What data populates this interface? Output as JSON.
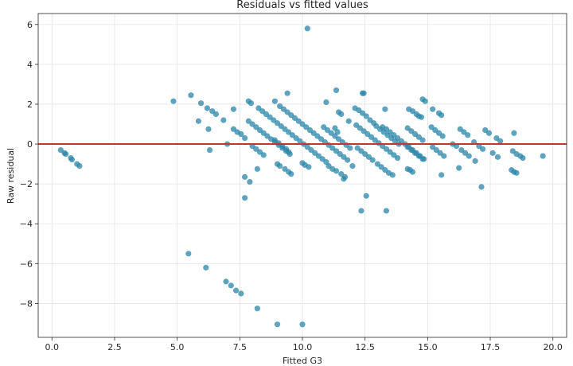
{
  "chart_data": {
    "type": "scatter",
    "title": "Residuals vs fitted values",
    "xlabel": "Fitted G3",
    "ylabel": "Raw residual",
    "xlim": [
      -0.55,
      20.55
    ],
    "ylim": [
      -9.7,
      6.55
    ],
    "xticks": [
      0.0,
      2.5,
      5.0,
      7.5,
      10.0,
      12.5,
      15.0,
      17.5,
      20.0
    ],
    "xtick_labels": [
      "0.0",
      "2.5",
      "5.0",
      "7.5",
      "10.0",
      "12.5",
      "15.0",
      "17.5",
      "20.0"
    ],
    "yticks": [
      -8,
      -6,
      -4,
      -2,
      0,
      2,
      4,
      6
    ],
    "ytick_labels": [
      "−8",
      "−6",
      "−4",
      "−2",
      "0",
      "2",
      "4",
      "6"
    ],
    "grid": true,
    "reference_line": {
      "y": 0,
      "color": "#c0392b"
    },
    "point_color": "#2a85a8",
    "points": [
      [
        0.35,
        -0.3
      ],
      [
        0.5,
        -0.45
      ],
      [
        0.55,
        -0.5
      ],
      [
        0.75,
        -0.7
      ],
      [
        0.8,
        -0.78
      ],
      [
        1.0,
        -1.0
      ],
      [
        1.1,
        -1.1
      ],
      [
        4.85,
        2.15
      ],
      [
        5.55,
        2.45
      ],
      [
        5.95,
        2.05
      ],
      [
        6.2,
        1.8
      ],
      [
        6.4,
        1.65
      ],
      [
        6.55,
        1.5
      ],
      [
        5.85,
        1.15
      ],
      [
        6.25,
        0.75
      ],
      [
        6.3,
        -0.3
      ],
      [
        6.85,
        1.2
      ],
      [
        7.0,
        0.0
      ],
      [
        7.25,
        1.75
      ],
      [
        5.45,
        -5.5
      ],
      [
        6.15,
        -6.2
      ],
      [
        6.95,
        -6.9
      ],
      [
        7.15,
        -7.1
      ],
      [
        7.35,
        -7.35
      ],
      [
        7.55,
        -7.5
      ],
      [
        8.2,
        -8.25
      ],
      [
        9.0,
        -9.05
      ],
      [
        10.0,
        -9.05
      ],
      [
        7.85,
        2.15
      ],
      [
        7.95,
        2.05
      ],
      [
        8.9,
        2.15
      ],
      [
        9.4,
        2.55
      ],
      [
        10.2,
        5.8
      ],
      [
        10.95,
        2.1
      ],
      [
        11.35,
        2.7
      ],
      [
        12.4,
        2.55
      ],
      [
        12.45,
        2.55
      ],
      [
        13.3,
        1.75
      ],
      [
        14.8,
        2.25
      ],
      [
        14.9,
        2.15
      ],
      [
        15.2,
        1.75
      ],
      [
        14.65,
        1.4
      ],
      [
        7.7,
        -1.65
      ],
      [
        7.7,
        -2.7
      ],
      [
        7.9,
        -1.9
      ],
      [
        8.2,
        -1.25
      ],
      [
        12.35,
        -3.35
      ],
      [
        12.55,
        -2.6
      ],
      [
        13.35,
        -3.35
      ],
      [
        12.0,
        -1.1
      ],
      [
        11.65,
        -1.75
      ],
      [
        14.2,
        -1.25
      ],
      [
        14.3,
        -1.3
      ],
      [
        15.55,
        -1.55
      ],
      [
        16.25,
        -1.2
      ],
      [
        17.15,
        -2.15
      ],
      [
        18.45,
        0.55
      ],
      [
        19.6,
        -0.6
      ],
      [
        7.25,
        0.75
      ],
      [
        7.4,
        0.6
      ],
      [
        7.55,
        0.5
      ],
      [
        7.7,
        0.3
      ],
      [
        7.85,
        1.15
      ],
      [
        8.0,
        1.0
      ],
      [
        8.15,
        0.85
      ],
      [
        8.3,
        0.7
      ],
      [
        8.45,
        0.55
      ],
      [
        8.6,
        0.4
      ],
      [
        8.75,
        0.25
      ],
      [
        8.9,
        0.1
      ],
      [
        9.05,
        -0.05
      ],
      [
        9.2,
        -0.2
      ],
      [
        9.35,
        -0.35
      ],
      [
        9.5,
        -0.5
      ],
      [
        8.25,
        1.8
      ],
      [
        8.4,
        1.65
      ],
      [
        8.55,
        1.5
      ],
      [
        8.7,
        1.35
      ],
      [
        8.85,
        1.2
      ],
      [
        9.0,
        1.05
      ],
      [
        9.15,
        0.9
      ],
      [
        9.3,
        0.75
      ],
      [
        9.45,
        0.6
      ],
      [
        9.6,
        0.45
      ],
      [
        9.75,
        0.3
      ],
      [
        9.9,
        0.15
      ],
      [
        10.05,
        0.0
      ],
      [
        10.2,
        -0.15
      ],
      [
        10.35,
        -0.3
      ],
      [
        10.5,
        -0.45
      ],
      [
        10.65,
        -0.6
      ],
      [
        10.8,
        -0.75
      ],
      [
        10.95,
        -0.9
      ],
      [
        9.1,
        1.9
      ],
      [
        9.25,
        1.75
      ],
      [
        9.4,
        1.6
      ],
      [
        9.55,
        1.45
      ],
      [
        9.7,
        1.3
      ],
      [
        9.85,
        1.15
      ],
      [
        10.0,
        1.0
      ],
      [
        10.15,
        0.85
      ],
      [
        10.3,
        0.7
      ],
      [
        10.45,
        0.55
      ],
      [
        10.6,
        0.4
      ],
      [
        10.75,
        0.25
      ],
      [
        10.9,
        0.1
      ],
      [
        11.05,
        -0.05
      ],
      [
        11.2,
        -0.2
      ],
      [
        11.35,
        -0.35
      ],
      [
        11.5,
        -0.5
      ],
      [
        11.65,
        -0.65
      ],
      [
        11.8,
        -0.8
      ],
      [
        8.0,
        -0.1
      ],
      [
        8.15,
        -0.25
      ],
      [
        8.3,
        -0.4
      ],
      [
        8.45,
        -0.55
      ],
      [
        8.9,
        0.2
      ],
      [
        9.05,
        0.05
      ],
      [
        9.2,
        -0.1
      ],
      [
        9.35,
        -0.25
      ],
      [
        9.45,
        -0.4
      ],
      [
        9.0,
        -1.0
      ],
      [
        9.1,
        -1.1
      ],
      [
        9.3,
        -1.25
      ],
      [
        9.45,
        -1.4
      ],
      [
        9.55,
        -1.5
      ],
      [
        10.0,
        -0.95
      ],
      [
        10.1,
        -1.05
      ],
      [
        10.25,
        -1.15
      ],
      [
        10.85,
        0.85
      ],
      [
        11.0,
        0.7
      ],
      [
        11.15,
        0.55
      ],
      [
        11.3,
        0.4
      ],
      [
        11.45,
        0.25
      ],
      [
        11.6,
        0.1
      ],
      [
        11.75,
        -0.05
      ],
      [
        11.9,
        -0.2
      ],
      [
        11.3,
        0.8
      ],
      [
        11.4,
        0.6
      ],
      [
        11.45,
        1.6
      ],
      [
        11.55,
        1.5
      ],
      [
        11.85,
        1.15
      ],
      [
        11.05,
        -1.1
      ],
      [
        11.2,
        -1.25
      ],
      [
        11.35,
        -1.35
      ],
      [
        11.55,
        -1.5
      ],
      [
        11.7,
        -1.65
      ],
      [
        12.1,
        1.8
      ],
      [
        12.25,
        1.7
      ],
      [
        12.4,
        1.55
      ],
      [
        12.55,
        1.4
      ],
      [
        12.7,
        1.2
      ],
      [
        12.85,
        1.05
      ],
      [
        12.95,
        0.9
      ],
      [
        13.1,
        0.75
      ],
      [
        13.25,
        0.6
      ],
      [
        13.4,
        0.45
      ],
      [
        13.55,
        0.3
      ],
      [
        13.7,
        0.15
      ],
      [
        13.85,
        0.0
      ],
      [
        12.15,
        0.95
      ],
      [
        12.3,
        0.8
      ],
      [
        12.45,
        0.65
      ],
      [
        12.6,
        0.5
      ],
      [
        12.75,
        0.35
      ],
      [
        12.9,
        0.2
      ],
      [
        13.05,
        0.05
      ],
      [
        13.2,
        -0.1
      ],
      [
        13.35,
        -0.25
      ],
      [
        13.5,
        -0.4
      ],
      [
        13.65,
        -0.55
      ],
      [
        13.8,
        -0.7
      ],
      [
        12.2,
        -0.2
      ],
      [
        12.35,
        -0.35
      ],
      [
        12.5,
        -0.5
      ],
      [
        12.65,
        -0.65
      ],
      [
        12.8,
        -0.8
      ],
      [
        13.0,
        -1.0
      ],
      [
        13.15,
        -1.15
      ],
      [
        13.3,
        -1.3
      ],
      [
        13.45,
        -1.45
      ],
      [
        13.6,
        -1.55
      ],
      [
        13.2,
        0.85
      ],
      [
        13.35,
        0.75
      ],
      [
        13.5,
        0.6
      ],
      [
        13.65,
        0.45
      ],
      [
        13.8,
        0.3
      ],
      [
        13.95,
        0.15
      ],
      [
        14.1,
        0.0
      ],
      [
        14.25,
        -0.15
      ],
      [
        14.4,
        -0.3
      ],
      [
        14.55,
        -0.45
      ],
      [
        14.7,
        -0.6
      ],
      [
        14.85,
        -0.75
      ],
      [
        14.25,
        1.75
      ],
      [
        14.4,
        1.65
      ],
      [
        14.55,
        1.5
      ],
      [
        14.75,
        1.35
      ],
      [
        14.2,
        0.8
      ],
      [
        14.35,
        0.65
      ],
      [
        14.5,
        0.5
      ],
      [
        14.65,
        0.35
      ],
      [
        14.8,
        0.2
      ],
      [
        14.2,
        -0.15
      ],
      [
        14.35,
        -0.3
      ],
      [
        14.5,
        -0.45
      ],
      [
        14.65,
        -0.6
      ],
      [
        14.8,
        -0.75
      ],
      [
        14.4,
        -1.4
      ],
      [
        15.15,
        0.85
      ],
      [
        15.3,
        0.7
      ],
      [
        15.45,
        0.55
      ],
      [
        15.6,
        0.4
      ],
      [
        15.45,
        1.55
      ],
      [
        15.55,
        1.45
      ],
      [
        15.2,
        -0.15
      ],
      [
        15.35,
        -0.3
      ],
      [
        15.5,
        -0.45
      ],
      [
        15.65,
        -0.6
      ],
      [
        16.0,
        0.0
      ],
      [
        16.15,
        -0.1
      ],
      [
        16.3,
        0.75
      ],
      [
        16.45,
        0.6
      ],
      [
        16.6,
        0.45
      ],
      [
        16.35,
        -0.3
      ],
      [
        16.5,
        -0.45
      ],
      [
        16.65,
        -0.6
      ],
      [
        16.85,
        0.1
      ],
      [
        16.9,
        -0.85
      ],
      [
        17.05,
        -0.1
      ],
      [
        17.2,
        -0.25
      ],
      [
        17.3,
        0.7
      ],
      [
        17.45,
        0.55
      ],
      [
        17.6,
        -0.45
      ],
      [
        17.8,
        -0.65
      ],
      [
        17.75,
        0.3
      ],
      [
        17.9,
        0.15
      ],
      [
        18.35,
        -1.3
      ],
      [
        18.45,
        -1.4
      ],
      [
        18.55,
        -1.45
      ],
      [
        18.4,
        -0.35
      ],
      [
        18.55,
        -0.5
      ],
      [
        18.7,
        -0.6
      ],
      [
        18.8,
        -0.7
      ]
    ]
  }
}
